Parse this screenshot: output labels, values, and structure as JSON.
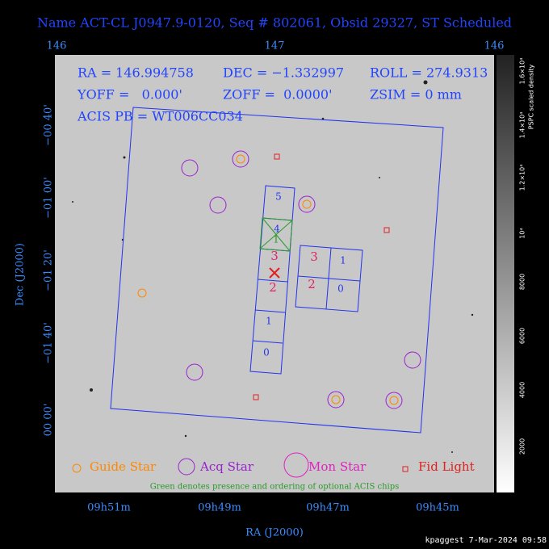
{
  "header": {
    "title": "Name ACT-CL J0947.9-0120, Seq # 802061, Obsid 29327, ST Scheduled"
  },
  "top_axis": {
    "ticks": [
      "146",
      "147",
      "146"
    ]
  },
  "left_axis": {
    "label": "Dec (J2000)",
    "ticks": [
      "−00 40'",
      "−01 00'",
      "−01 20'",
      "−01 40'",
      "00 00'"
    ]
  },
  "bottom_axis": {
    "label": "RA (J2000)",
    "ticks": [
      "09h51m",
      "09h49m",
      "09h47m",
      "09h45m"
    ]
  },
  "colorbar": {
    "label": "PSPC scaled density",
    "ticks": [
      "2000",
      "4000",
      "6000",
      "8000",
      "10⁴",
      "1.2×10⁴",
      "1.4×10⁴",
      "1.6×10⁴"
    ]
  },
  "info": {
    "ra": "RA = 146.994758",
    "dec": "DEC = −1.332997",
    "roll": "ROLL = 274.9313",
    "yoff": "YOFF =   0.000'",
    "zoff": "ZOFF =  0.0000'",
    "zsim": "ZSIM = 0 mm",
    "acis": "ACIS PB = WT006CC034"
  },
  "chips": {
    "s": [
      "5",
      "4",
      "1",
      "3",
      "2",
      "1",
      "0"
    ],
    "i": [
      "3",
      "1",
      "2",
      "0"
    ]
  },
  "legend": {
    "guide": "Guide Star",
    "acq": "Acq Star",
    "mon": "Mon Star",
    "fid": "Fid Light"
  },
  "note": "Green denotes presence and ordering of optional ACIS chips",
  "footer": "kpaggest  7-Mar-2024 09:58"
}
